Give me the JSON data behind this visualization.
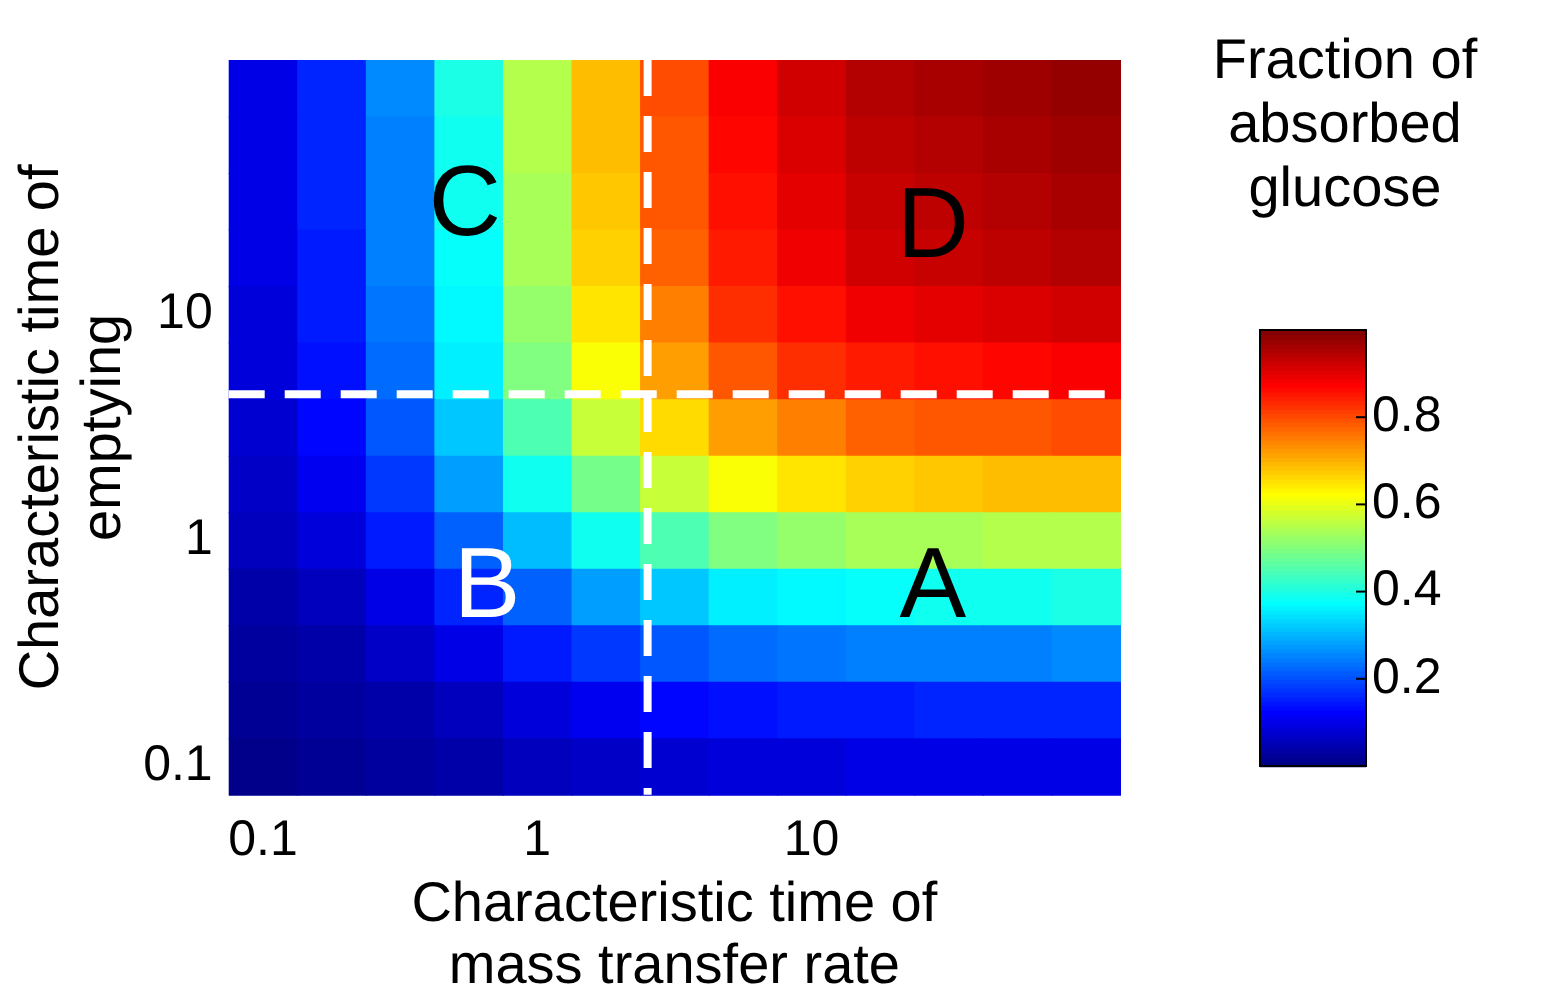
{
  "chart_data": {
    "type": "heatmap",
    "xlabel": "Characteristic time of mass transfer rate",
    "ylabel": "Characteristic time of emptying",
    "clabel": "Fraction of absorbed glucose",
    "categories": [
      "0.1",
      null,
      null,
      null,
      "1",
      null,
      null,
      null,
      "10",
      null,
      null,
      null,
      null
    ],
    "y_categories": [
      null,
      null,
      null,
      null,
      "10",
      null,
      null,
      null,
      "1",
      null,
      null,
      null,
      "0.1"
    ],
    "cells": [
      [
        0.1,
        0.16,
        0.26,
        0.4,
        0.55,
        0.69,
        0.8,
        0.88,
        0.92,
        0.95,
        0.96,
        0.97,
        0.98
      ],
      [
        0.1,
        0.16,
        0.25,
        0.39,
        0.55,
        0.69,
        0.79,
        0.87,
        0.91,
        0.94,
        0.95,
        0.96,
        0.97
      ],
      [
        0.1,
        0.16,
        0.25,
        0.39,
        0.54,
        0.68,
        0.79,
        0.86,
        0.9,
        0.93,
        0.94,
        0.95,
        0.96
      ],
      [
        0.1,
        0.15,
        0.25,
        0.38,
        0.54,
        0.67,
        0.78,
        0.85,
        0.89,
        0.92,
        0.93,
        0.94,
        0.95
      ],
      [
        0.09,
        0.15,
        0.24,
        0.37,
        0.52,
        0.65,
        0.75,
        0.83,
        0.86,
        0.89,
        0.9,
        0.91,
        0.92
      ],
      [
        0.09,
        0.14,
        0.23,
        0.36,
        0.5,
        0.62,
        0.72,
        0.79,
        0.83,
        0.85,
        0.86,
        0.87,
        0.88
      ],
      [
        0.08,
        0.13,
        0.21,
        0.32,
        0.45,
        0.57,
        0.66,
        0.72,
        0.75,
        0.78,
        0.79,
        0.79,
        0.8
      ],
      [
        0.07,
        0.11,
        0.18,
        0.28,
        0.39,
        0.49,
        0.57,
        0.62,
        0.65,
        0.67,
        0.68,
        0.69,
        0.69
      ],
      [
        0.06,
        0.09,
        0.15,
        0.22,
        0.31,
        0.39,
        0.45,
        0.5,
        0.52,
        0.54,
        0.54,
        0.55,
        0.55
      ],
      [
        0.04,
        0.06,
        0.1,
        0.16,
        0.22,
        0.28,
        0.32,
        0.36,
        0.37,
        0.38,
        0.39,
        0.39,
        0.4
      ],
      [
        0.03,
        0.04,
        0.07,
        0.1,
        0.15,
        0.18,
        0.21,
        0.23,
        0.24,
        0.25,
        0.25,
        0.25,
        0.26
      ],
      [
        0.02,
        0.03,
        0.04,
        0.06,
        0.09,
        0.11,
        0.13,
        0.14,
        0.15,
        0.15,
        0.16,
        0.16,
        0.16
      ],
      [
        0.01,
        0.02,
        0.03,
        0.04,
        0.06,
        0.07,
        0.08,
        0.09,
        0.09,
        0.1,
        0.1,
        0.1,
        0.1
      ]
    ],
    "clim": [
      0,
      1
    ],
    "cticks": [
      0.2,
      0.4,
      0.6,
      0.8
    ],
    "annotations": [
      "C",
      "D",
      "B",
      "A"
    ]
  }
}
